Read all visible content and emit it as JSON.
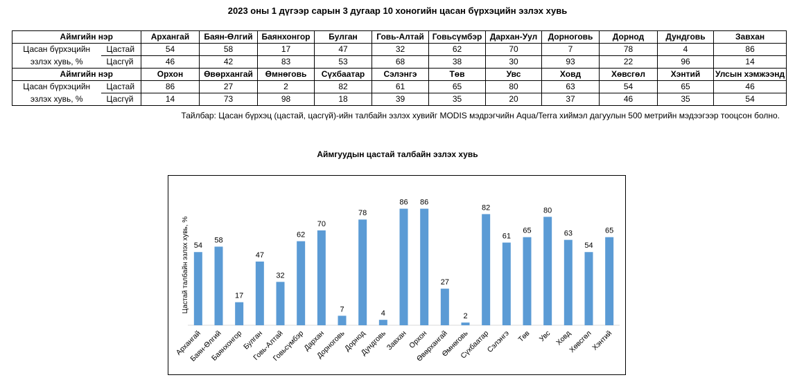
{
  "title": "2023 оны 1 дүгээр сарын 3 дугаар 10 хоногийн цасан бүрхэцийн эзлэх хувь",
  "table": {
    "header_label": "Аймгийн нэр",
    "row_label_line1": "Цасан бүрхэцийн",
    "row_label_line2": "эзлэх хувь, %",
    "sub_labels": [
      "Цастай",
      "Цасгүй"
    ],
    "blocks": [
      {
        "names": [
          "Архангай",
          "Баян-Өлгий",
          "Баянхонгор",
          "Булган",
          "Говь-Алтай",
          "Говьсүмбэр",
          "Дархан-Уул",
          "Дорноговь",
          "Дорнод",
          "Дундговь",
          "Завхан"
        ],
        "snow": [
          "54",
          "58",
          "17",
          "47",
          "32",
          "62",
          "70",
          "7",
          "78",
          "4",
          "86"
        ],
        "nosnow": [
          "46",
          "42",
          "83",
          "53",
          "68",
          "38",
          "30",
          "93",
          "22",
          "96",
          "14"
        ]
      },
      {
        "names": [
          "Орхон",
          "Өвөрхангай",
          "Өмнөговь",
          "Сүхбаатар",
          "Сэлэнгэ",
          "Төв",
          "Увс",
          "Ховд",
          "Хөвсгөл",
          "Хэнтий",
          "Улсын хэмжээнд"
        ],
        "snow": [
          "86",
          "27",
          "2",
          "82",
          "61",
          "65",
          "80",
          "63",
          "54",
          "65",
          "46"
        ],
        "nosnow": [
          "14",
          "73",
          "98",
          "18",
          "39",
          "35",
          "20",
          "37",
          "46",
          "35",
          "54"
        ]
      }
    ]
  },
  "note": "Тайлбар: Цасан бүрхэц (цастай, цасгүй)-ийн талбайн эзлэх хувийг MODIS мэдрэгчийн Aqua/Terra хиймэл дагуулын 500 метрийн мэдээгээр тооцсон болно.",
  "chart_data": {
    "type": "bar",
    "title": "Аймгуудын цастай талбайн эзлэх хувь",
    "xlabel": "",
    "ylabel": "Цастай талбайн эзлэх хувь, %",
    "ylim": [
      0,
      100
    ],
    "grid": false,
    "legend": "none",
    "bar_color": "#5b9bd5",
    "categories": [
      "Архангай",
      "Баян-Өлгий",
      "Баянхонгор",
      "Булган",
      "Говь-Алтай",
      "Говьсүмбэр",
      "Дархан",
      "Дорноговь",
      "Дорнод",
      "Дундговь",
      "Завхан",
      "Орхон",
      "Өвөрхангай",
      "Өмнөговь",
      "Сүхбаатар",
      "Сэлэнгэ",
      "Төв",
      "Увс",
      "Ховд",
      "Хөвсгөл",
      "Хэнтий"
    ],
    "values": [
      54,
      58,
      17,
      47,
      32,
      62,
      70,
      7,
      78,
      4,
      86,
      86,
      27,
      2,
      82,
      61,
      65,
      80,
      63,
      54,
      65
    ]
  }
}
